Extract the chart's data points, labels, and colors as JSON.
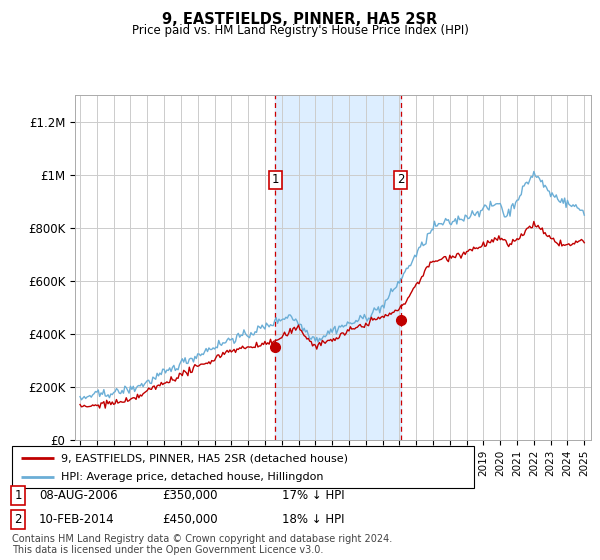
{
  "title": "9, EASTFIELDS, PINNER, HA5 2SR",
  "subtitle": "Price paid vs. HM Land Registry's House Price Index (HPI)",
  "ytick_labels": [
    "£0",
    "£200K",
    "£400K",
    "£600K",
    "£800K",
    "£1M",
    "£1.2M"
  ],
  "yticks": [
    0,
    200000,
    400000,
    600000,
    800000,
    1000000,
    1200000
  ],
  "ylim": [
    0,
    1300000
  ],
  "legend_line1": "9, EASTFIELDS, PINNER, HA5 2SR (detached house)",
  "legend_line2": "HPI: Average price, detached house, Hillingdon",
  "sale1_year": 2006.625,
  "sale1_price": 350000,
  "sale2_year": 2014.083,
  "sale2_price": 450000,
  "hpi_color": "#6baed6",
  "price_color": "#c00000",
  "shade_color": "#ddeeff",
  "vline_color": "#cc0000",
  "grid_color": "#cccccc",
  "footnote1": "Contains HM Land Registry data © Crown copyright and database right 2024.",
  "footnote2": "This data is licensed under the Open Government Licence v3.0."
}
